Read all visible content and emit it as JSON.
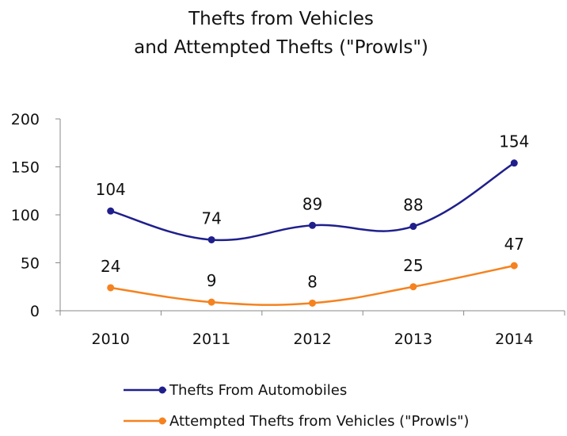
{
  "chart_data": {
    "type": "line",
    "title_lines": [
      "Thefts from Vehicles",
      "and Attempted Thefts (\"Prowls\")"
    ],
    "categories": [
      "2010",
      "2011",
      "2012",
      "2013",
      "2014"
    ],
    "ylim": [
      0,
      200
    ],
    "yticks": [
      0,
      50,
      100,
      150,
      200
    ],
    "grid": false,
    "smooth": true,
    "legend_position": "bottom",
    "series": [
      {
        "name": "Thefts From Automobiles",
        "color": "#1f1f8c",
        "values": [
          104,
          74,
          89,
          88,
          154
        ]
      },
      {
        "name": "Attempted Thefts from Vehicles (\"Prowls\")",
        "color": "#f5821f",
        "values": [
          24,
          9,
          8,
          25,
          47
        ]
      }
    ]
  }
}
